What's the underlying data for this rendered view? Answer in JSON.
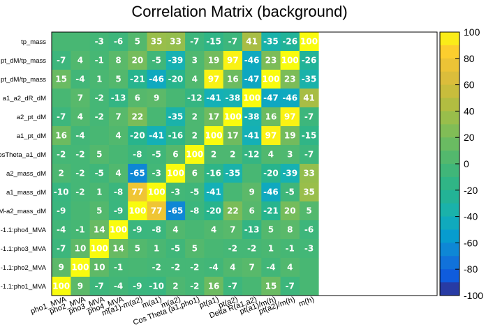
{
  "chart_data": {
    "type": "heatmap",
    "title": "Correlation Matrix (background)",
    "x_labels": [
      "pho1_MVA",
      "pho2_MVA",
      "pho3_MVA",
      "pho4_MVA",
      "m(a1)-m(a2)",
      "m(a1)",
      "m(a2)",
      "Cos Theta (a1,pho1)",
      "pt(a1)",
      "pt(a2)",
      "Delta R(a1,a2)",
      "pt(a1)/m(h)",
      "pt(a2)/m(h)",
      "m(h)"
    ],
    "y_labels_top_to_bottom": [
      "tp_mass",
      "pt_dM/tp_mass",
      "pt_dM/tp_mass",
      "a1_a2_dR_dM",
      "a2_pt_dM",
      "a1_pt_dM",
      "osTheta_a1_dM",
      "a2_mass_dM",
      "a1_mass_dM",
      "M-a2_mass_dM",
      "-1.1:pho4_MVA",
      "-1.1:pho3_MVA",
      "-1.1:pho2_MVA",
      "-1.1:pho1_MVA"
    ],
    "values_top_to_bottom": [
      [
        0,
        0,
        -3,
        -6,
        5,
        35,
        33,
        -7,
        -15,
        -7,
        41,
        -35,
        -26,
        100
      ],
      [
        -7,
        4,
        -1,
        8,
        20,
        -5,
        -39,
        3,
        19,
        97,
        -46,
        23,
        100,
        -26
      ],
      [
        15,
        -4,
        1,
        5,
        -21,
        -46,
        -20,
        4,
        97,
        16,
        -47,
        100,
        23,
        -35
      ],
      [
        0,
        7,
        -2,
        -13,
        6,
        9,
        0,
        -12,
        -41,
        -38,
        100,
        -47,
        -46,
        41
      ],
      [
        -7,
        4,
        -2,
        7,
        22,
        0,
        -35,
        2,
        17,
        100,
        -38,
        16,
        97,
        -7
      ],
      [
        16,
        -4,
        0,
        4,
        -20,
        -41,
        -16,
        2,
        100,
        17,
        -41,
        97,
        19,
        -15
      ],
      [
        -2,
        -2,
        5,
        0,
        -8,
        -5,
        6,
        100,
        2,
        2,
        -12,
        4,
        3,
        -7
      ],
      [
        2,
        -2,
        -5,
        4,
        -65,
        -3,
        100,
        6,
        -16,
        -35,
        0,
        -20,
        -39,
        33
      ],
      [
        -10,
        -2,
        1,
        -8,
        77,
        100,
        -3,
        -5,
        -41,
        0,
        9,
        -46,
        -5,
        35
      ],
      [
        -9,
        0,
        5,
        -9,
        100,
        77,
        -65,
        -8,
        -20,
        22,
        6,
        -21,
        20,
        5
      ],
      [
        -4,
        -1,
        14,
        100,
        -9,
        -8,
        4,
        0,
        4,
        7,
        -13,
        5,
        8,
        -6
      ],
      [
        -7,
        10,
        100,
        14,
        5,
        1,
        -5,
        5,
        0,
        -2,
        -2,
        1,
        -1,
        -3
      ],
      [
        9,
        100,
        10,
        -1,
        0,
        -2,
        -2,
        -2,
        -4,
        4,
        7,
        -4,
        4,
        0
      ],
      [
        100,
        9,
        -7,
        -4,
        -9,
        -10,
        2,
        -2,
        16,
        -7,
        0,
        15,
        -7,
        0
      ]
    ],
    "zlim": [
      -100,
      100
    ],
    "z_ticks": [
      -100,
      -80,
      -60,
      -40,
      -20,
      0,
      20,
      40,
      60,
      80,
      100
    ],
    "colorbar": "right",
    "hide_zero_labels": true
  }
}
